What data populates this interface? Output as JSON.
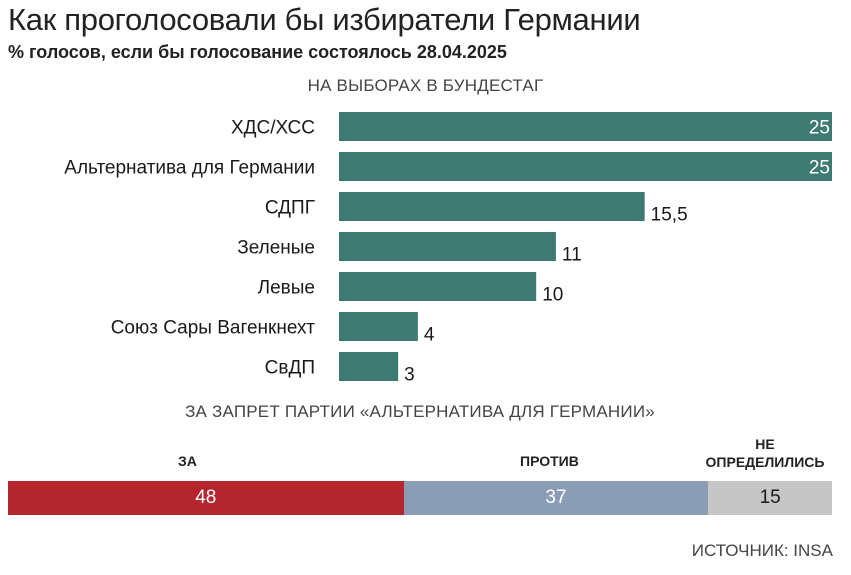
{
  "title": "Как проголосовали бы избиратели Германии",
  "subtitle": "% голосов, если бы голосование состоялось 28.04.2025",
  "source": "ИСТОЧНИК: INSA",
  "colors": {
    "bar": "#3d7a72",
    "for": "#b3262e",
    "against": "#8a9db4",
    "undecided": "#c6c6c6"
  },
  "chart_data": [
    {
      "type": "bar",
      "orientation": "horizontal",
      "title": "НА ВЫБОРАХ В БУНДЕСТАГ",
      "categories": [
        "ХДС/ХСС",
        "Альтернатива для Германии",
        "СДПГ",
        "Зеленые",
        "Левые",
        "Союз Сары Вагенкнехт",
        "СвДП"
      ],
      "values": [
        25,
        25,
        15.5,
        11,
        10,
        4,
        3
      ],
      "value_labels": [
        "25",
        "25",
        "15,5",
        "11",
        "10",
        "4",
        "3"
      ],
      "xlim": [
        0,
        25
      ],
      "grid": false
    },
    {
      "type": "bar",
      "orientation": "stacked-horizontal",
      "title": "ЗА ЗАПРЕТ ПАРТИИ «АЛЬТЕРНАТИВА ДЛЯ ГЕРМАНИИ»",
      "categories": [
        "ЗА",
        "ПРОТИВ",
        "НЕ ОПРЕДЕЛИЛИСЬ"
      ],
      "header_lines": [
        [
          "ЗА"
        ],
        [
          "ПРОТИВ"
        ],
        [
          "НЕ",
          "ОПРЕДЕЛИЛИСЬ"
        ]
      ],
      "values": [
        48,
        37,
        15
      ],
      "value_labels": [
        "48",
        "37",
        "15"
      ]
    }
  ]
}
